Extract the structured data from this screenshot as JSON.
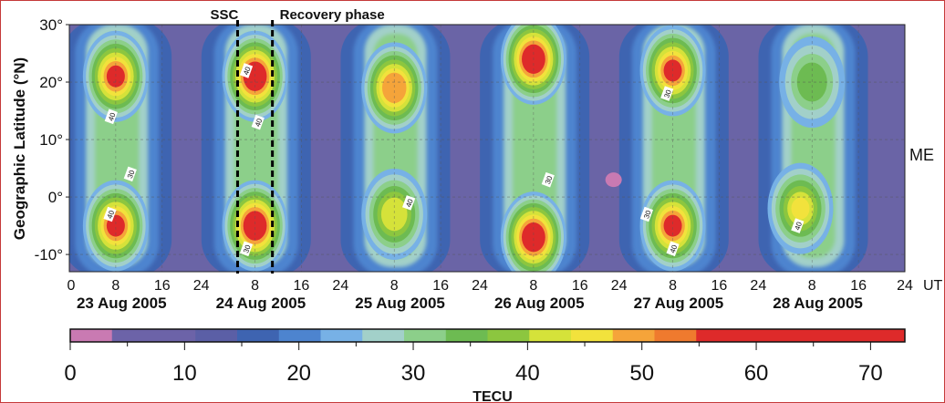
{
  "chart_data": {
    "type": "heatmap",
    "title": "",
    "ylabel": "Geographic Latitude (°N)",
    "station_label": "ME",
    "x_unit_label": "UT",
    "y_ticks": [
      "30°",
      "20°",
      "10°",
      "0°",
      "-10°"
    ],
    "y_values": [
      30,
      20,
      10,
      0,
      -10
    ],
    "ylim": [
      -13,
      30
    ],
    "x_ticks_per_day": [
      "0",
      "8",
      "16",
      "24"
    ],
    "days": [
      "23 Aug 2005",
      "24 Aug 2005",
      "25 Aug 2005",
      "26 Aug 2005",
      "27 Aug 2005",
      "28 Aug 2005"
    ],
    "annotations": [
      {
        "text": "SSC",
        "ut_hour_day2": 5
      },
      {
        "text": "Recovery phase",
        "ut_hour_day2": 11
      }
    ],
    "contour_labels": [
      "40",
      "40",
      "30",
      "40",
      "40",
      "30",
      "40",
      "30",
      "30",
      "40",
      "30",
      "40"
    ],
    "colorbar": {
      "label": "TECU",
      "ticks": [
        "0",
        "10",
        "20",
        "30",
        "40",
        "50",
        "60",
        "70"
      ],
      "range": [
        0,
        73
      ],
      "colors": [
        "#c97ab2",
        "#6c63a8",
        "#6c63a8",
        "#5b5fa6",
        "#3e64b1",
        "#4d84cf",
        "#77b1e6",
        "#a2d0c9",
        "#8ccf8a",
        "#6dbb52",
        "#8cc63f",
        "#d5e23a",
        "#f2e23c",
        "#f5a43a",
        "#ef7a2e",
        "#de2a2a",
        "#de2a2a",
        "#de2a2a",
        "#de2a2a",
        "#de2a2a"
      ]
    },
    "daily_peaks": [
      {
        "day": "23 Aug 2005",
        "peaks": [
          {
            "ut": 8,
            "lat": 21,
            "tec": 55
          },
          {
            "ut": 8,
            "lat": -5,
            "tec": 55
          }
        ]
      },
      {
        "day": "24 Aug 2005",
        "peaks": [
          {
            "ut": 8,
            "lat": 21,
            "tec": 62
          },
          {
            "ut": 8,
            "lat": -5,
            "tec": 62
          }
        ]
      },
      {
        "day": "25 Aug 2005",
        "peaks": [
          {
            "ut": 8,
            "lat": 19,
            "tec": 50
          },
          {
            "ut": 8,
            "lat": -3,
            "tec": 42
          }
        ]
      },
      {
        "day": "26 Aug 2005",
        "peaks": [
          {
            "ut": 8,
            "lat": 24,
            "tec": 60
          },
          {
            "ut": 8,
            "lat": -7,
            "tec": 60
          }
        ]
      },
      {
        "day": "27 Aug 2005",
        "peaks": [
          {
            "ut": 8,
            "lat": 22,
            "tec": 55
          },
          {
            "ut": 8,
            "lat": -5,
            "tec": 55
          }
        ]
      },
      {
        "day": "28 Aug 2005",
        "peaks": [
          {
            "ut": 8,
            "lat": 20,
            "tec": 36
          },
          {
            "ut": 6,
            "lat": -2,
            "tec": 45
          }
        ]
      }
    ]
  }
}
